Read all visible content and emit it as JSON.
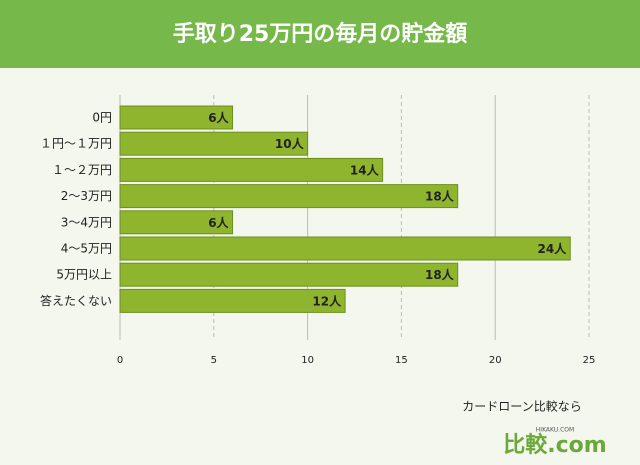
{
  "chart_data": {
    "type": "barh",
    "title": "手取り25万円の毎月の貯金額",
    "categories": [
      "0円",
      "１円～１万円",
      "１～２万円",
      "2～3万円",
      "3～4万円",
      "4～5万円",
      "5万円以上",
      "答えたくない"
    ],
    "values": [
      6,
      10,
      14,
      18,
      6,
      24,
      18,
      12
    ],
    "value_labels": [
      "6人",
      "10人",
      "14人",
      "18人",
      "6人",
      "24人",
      "18人",
      "12人"
    ],
    "color": "#8fb52f",
    "xlim": [
      0,
      25
    ],
    "xticks": [
      0,
      5,
      10,
      15,
      20,
      25
    ],
    "grid": true
  },
  "footer": {
    "tagline": "カードローン比較なら",
    "logo": "比較.com",
    "logo_small": "HIKAKU.COM"
  }
}
